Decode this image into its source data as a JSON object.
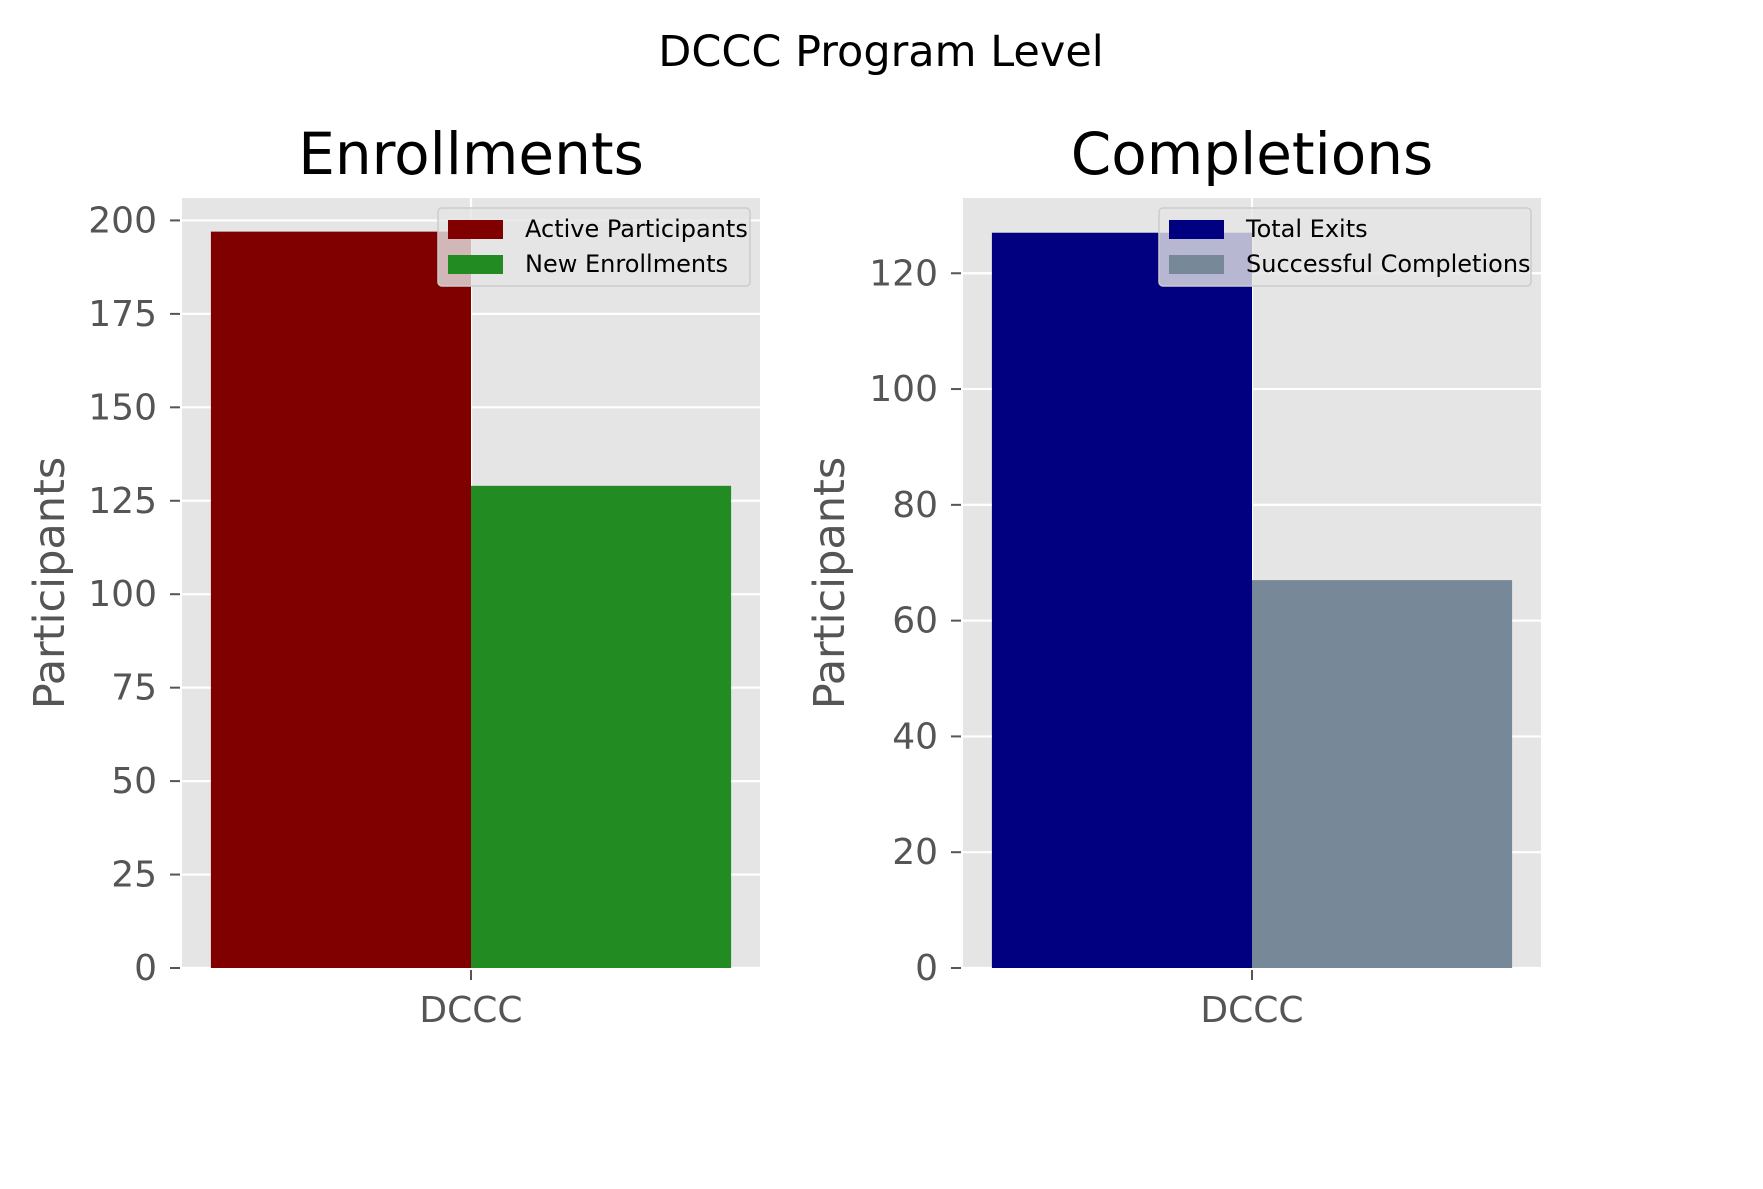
{
  "figure": {
    "suptitle": "DCCC Program Level",
    "background": "#ffffff",
    "axes_background": "#e5e5e5",
    "grid_color": "#ffffff"
  },
  "chart_data": [
    {
      "type": "bar",
      "title": "Enrollments",
      "xlabel": "",
      "ylabel": "Participants",
      "categories": [
        "DCCC"
      ],
      "series": [
        {
          "name": "Active Participants",
          "values": [
            197
          ],
          "color": "#800000"
        },
        {
          "name": "New Enrollments",
          "values": [
            129
          ],
          "color": "#228b22"
        }
      ],
      "ylim": [
        0,
        206
      ],
      "yticks": [
        0,
        25,
        50,
        75,
        100,
        125,
        150,
        175,
        200
      ],
      "grid": true,
      "legend_position": "upper right"
    },
    {
      "type": "bar",
      "title": "Completions",
      "xlabel": "",
      "ylabel": "Participants",
      "categories": [
        "DCCC"
      ],
      "series": [
        {
          "name": "Total Exits",
          "values": [
            127
          ],
          "color": "#000080"
        },
        {
          "name": "Successful Completions",
          "values": [
            67
          ],
          "color": "#778899"
        }
      ],
      "ylim": [
        0,
        133
      ],
      "yticks": [
        0,
        20,
        40,
        60,
        80,
        100,
        120
      ],
      "grid": true,
      "legend_position": "upper right"
    }
  ]
}
